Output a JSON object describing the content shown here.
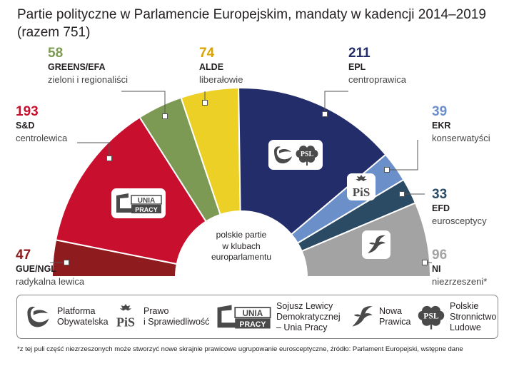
{
  "chart_data": {
    "type": "pie",
    "variant": "hemicycle",
    "title": "Partie polityczne w Parlamencie Europejskim, mandaty w kadencji 2014–2019",
    "subtitle": "(razem 751)",
    "total": 751,
    "center_label": "polskie partie\nw klubach\neuroparlamentu",
    "series": [
      {
        "id": "gue",
        "code": "GUE/NGL",
        "name": "radykalna lewica",
        "value": 47,
        "color": "#8e1b1e"
      },
      {
        "id": "sd",
        "code": "S&D",
        "name": "centrolewica",
        "value": 193,
        "color": "#c8102e"
      },
      {
        "id": "greens",
        "code": "GREENS/EFA",
        "name": "zieloni i regionaliści",
        "value": 58,
        "color": "#7d9a55"
      },
      {
        "id": "alde",
        "code": "ALDE",
        "name": "liberałowie",
        "value": 74,
        "color": "#ecd026"
      },
      {
        "id": "epl",
        "code": "EPL",
        "name": "centroprawica",
        "value": 211,
        "color": "#232d6a"
      },
      {
        "id": "ekr",
        "code": "EKR",
        "name": "konserwatyści",
        "value": 39,
        "color": "#6b8fc8"
      },
      {
        "id": "efd",
        "code": "EFD",
        "name": "eurosceptycy",
        "value": 33,
        "color": "#2b4a63"
      },
      {
        "id": "ni",
        "code": "NI",
        "name": "niezrzeszeni*",
        "value": 96,
        "color": "#a3a3a3"
      }
    ]
  },
  "colors": {
    "text": "#231f20",
    "gue_text": "#8e1b1e",
    "sd_text": "#c8102e",
    "greens_text": "#7d9a55",
    "alde_text": "#d9a300",
    "epl_text": "#232d6a",
    "ekr_text": "#6b8fc8",
    "efd_text": "#2b4a63",
    "ni_text": "#a3a3a3"
  },
  "logos": {
    "unia_pracy": {
      "line1": "UNIA",
      "line2": "PRACY",
      "icon": "unia-pracy-logo-icon"
    },
    "psl": {
      "text": "PSL",
      "icon": "psl-clover-logo-icon"
    },
    "po": {
      "icon": "po-swoosh-logo-icon"
    },
    "pis": {
      "text": "PiS",
      "icon": "pis-eagle-logo-icon"
    },
    "nowa_prawica": {
      "icon": "nowa-prawica-eagle-logo-icon"
    }
  },
  "legend": {
    "items": [
      {
        "id": "po",
        "label": "Platforma\nObywatelska",
        "icon": "po-swoosh-logo-icon"
      },
      {
        "id": "pis",
        "label": "Prawo\ni Sprawiedliwość",
        "icon": "pis-eagle-logo-icon"
      },
      {
        "id": "sld",
        "label": "Sojusz Lewicy\nDemokratycznej\n– Unia Pracy",
        "icon": "unia-pracy-logo-icon"
      },
      {
        "id": "np",
        "label": "Nowa\nPrawica",
        "icon": "nowa-prawica-eagle-logo-icon"
      },
      {
        "id": "psl",
        "label": "Polskie\nStronnictwo\nLudowe",
        "icon": "psl-clover-logo-icon"
      }
    ]
  },
  "footnote": "*z tej puli część niezrzeszonych może stworzyć nowe skrajnie prawicowe ugrupowanie eurosceptyczne, źródło: Parlament Europejski, wstępne dane"
}
